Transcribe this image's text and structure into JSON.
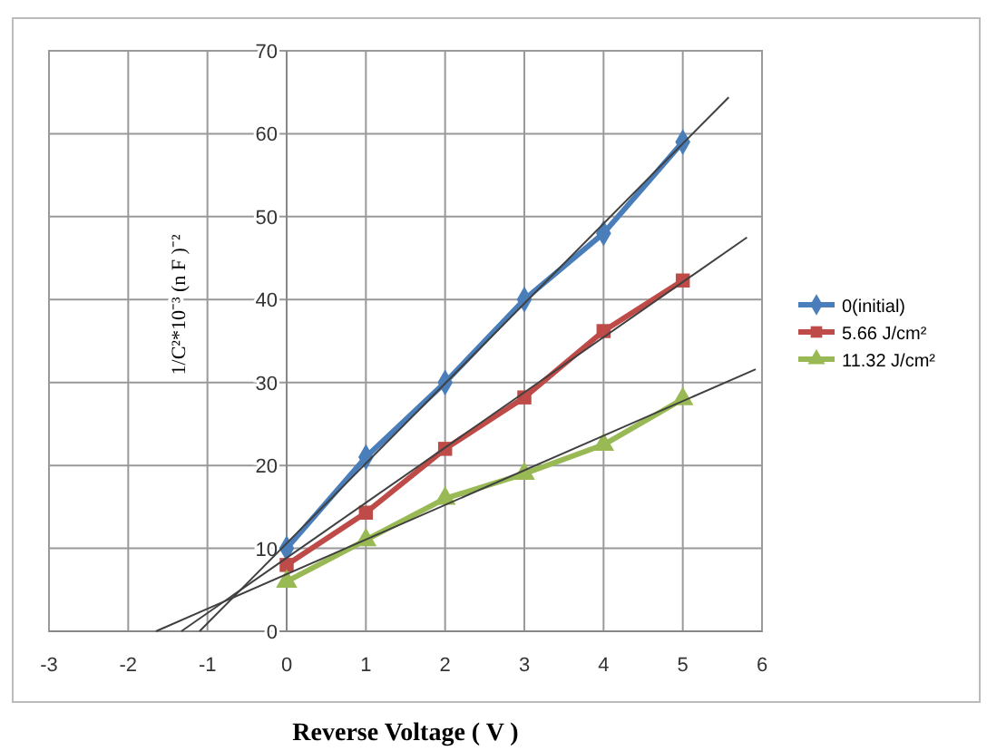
{
  "chart_data": {
    "type": "line",
    "xlabel": "Reverse Voltage ( V )",
    "ylabel": "1/C²*10⁻³ (n F )⁻²",
    "xlim": [
      -3,
      6
    ],
    "xticks": [
      -3,
      -2,
      -1,
      0,
      1,
      2,
      3,
      4,
      5,
      6
    ],
    "ylim": [
      0,
      70
    ],
    "yticks": [
      0,
      10,
      20,
      30,
      40,
      50,
      60,
      70
    ],
    "grid": true,
    "legend": "right",
    "series": [
      {
        "name": "0(initial)",
        "color": "#4a7ebb",
        "marker": "diamond",
        "x": [
          0,
          1,
          2,
          3,
          4,
          5
        ],
        "values": [
          10,
          21,
          30,
          40,
          48,
          59
        ]
      },
      {
        "name": "5.66 J/cm²",
        "color": "#be4b48",
        "marker": "square",
        "x": [
          0,
          1,
          2,
          3,
          4,
          5
        ],
        "values": [
          8,
          14.3,
          22,
          28.2,
          36.2,
          42.3
        ]
      },
      {
        "name": "11.32 J/cm²",
        "color": "#98b954",
        "marker": "triangle",
        "x": [
          0,
          1,
          2,
          3,
          4,
          5
        ],
        "values": [
          6,
          11,
          16,
          19,
          22.5,
          28
        ]
      },
      {
        "type": "line",
        "color": "#404040",
        "marker": "none",
        "x": [
          -1.1,
          5.58
        ],
        "values": [
          0,
          64.4
        ]
      },
      {
        "type": "line",
        "color": "#404040",
        "marker": "none",
        "x": [
          -1.33,
          5.81
        ],
        "values": [
          0,
          47.5
        ]
      },
      {
        "type": "line",
        "color": "#404040",
        "marker": "none",
        "x": [
          -1.65,
          5.92
        ],
        "values": [
          0,
          31.6
        ]
      }
    ]
  }
}
